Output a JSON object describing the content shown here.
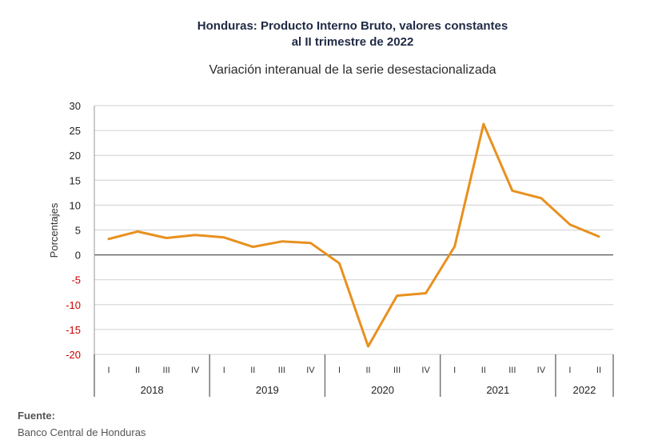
{
  "chart_data": {
    "type": "line",
    "title_line1": "Honduras: Producto Interno Bruto, valores constantes",
    "title_line2": "al II trimestre de 2022",
    "subtitle": "Variación interanual de la serie desestacionalizada",
    "ylabel": "Porcentajes",
    "ylim": [
      -20,
      30
    ],
    "yticks": [
      "30",
      "25",
      "20",
      "15",
      "10",
      "5",
      "0",
      "-5",
      "-10",
      "-15",
      "-20"
    ],
    "ytick_values": [
      30,
      25,
      20,
      15,
      10,
      5,
      0,
      -5,
      -10,
      -15,
      -20
    ],
    "negative_tick_color": "#cc0000",
    "line_color": "#e8901e",
    "grid": true,
    "quarters": [
      "I",
      "II",
      "III",
      "IV",
      "I",
      "II",
      "III",
      "IV",
      "I",
      "II",
      "III",
      "IV",
      "I",
      "II",
      "III",
      "IV",
      "I",
      "II"
    ],
    "years": [
      {
        "label": "2018",
        "count": 4
      },
      {
        "label": "2019",
        "count": 4
      },
      {
        "label": "2020",
        "count": 4
      },
      {
        "label": "2021",
        "count": 4
      },
      {
        "label": "2022",
        "count": 2
      }
    ],
    "values": [
      3.2,
      4.7,
      3.4,
      4.0,
      3.5,
      1.6,
      2.7,
      2.4,
      -1.7,
      -18.4,
      -8.2,
      -7.7,
      1.7,
      26.3,
      12.9,
      11.4,
      6.1,
      3.7
    ]
  },
  "source": {
    "label": "Fuente:",
    "text": "Banco Central de Honduras"
  }
}
